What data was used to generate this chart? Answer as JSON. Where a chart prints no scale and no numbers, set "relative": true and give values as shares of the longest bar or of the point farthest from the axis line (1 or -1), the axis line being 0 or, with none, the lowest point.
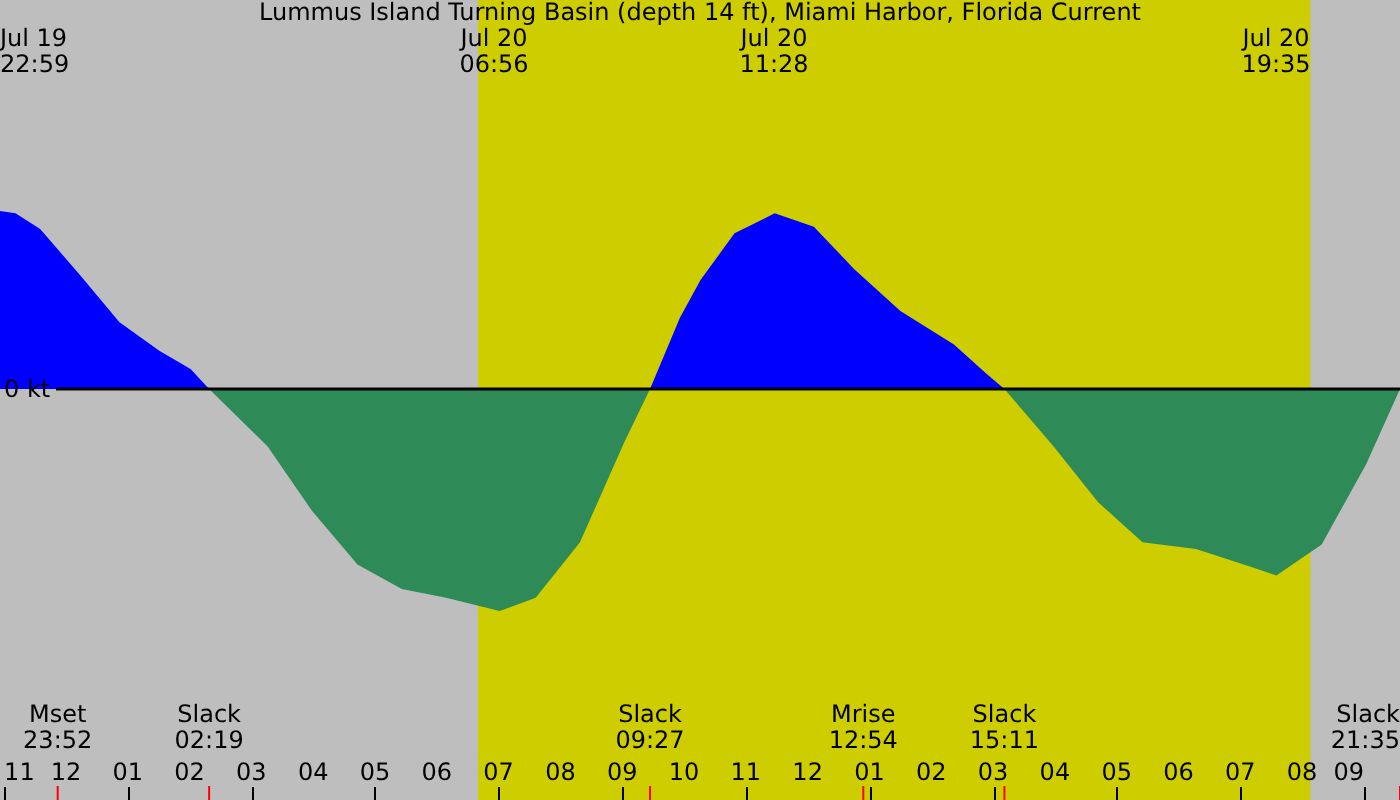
{
  "chart_data": {
    "type": "area",
    "title": "Lummus Island Turning Basin (depth 14 ft), Miami Harbor, Florida Current",
    "relative": true,
    "series": [
      {
        "color": "#0000ff",
        "x": [
          "--07-19T22:56",
          "--07-19T23:11",
          "--07-19T23:35",
          "--07-20T00:14",
          "--07-20T00:52",
          "--07-20T01:31",
          "--07-20T02:01",
          "--07-20T02:19",
          "--07-20T05:30",
          "--07-20T09:27",
          "--07-20T09:56",
          "--07-20T10:16",
          "--07-20T10:49",
          "--07-20T11:28",
          "--07-20T12:06",
          "--07-20T12:45",
          "--07-20T13:30",
          "--07-20T14:22",
          "--07-20T14:53",
          "--07-20T15:11"
        ],
        "values": [
          0.8,
          0.79,
          0.72,
          0.51,
          0.3,
          0.17,
          0.09,
          0,
          null,
          0,
          0.32,
          0.49,
          0.7,
          0.79,
          0.73,
          0.54,
          0.35,
          0.2,
          0.07,
          0
        ]
      },
      {
        "color": "#2e8b57",
        "x": [
          "--07-20T02:19",
          "--07-20T03:16",
          "--07-20T03:59",
          "--07-20T04:43",
          "--07-20T05:26",
          "--07-20T06:09",
          "--07-20T07:01",
          "--07-20T07:36",
          "--07-20T08:19",
          "--07-20T09:02",
          "--07-20T09:27",
          "--07-20T12:30",
          "--07-20T15:11",
          "--07-20T15:59",
          "--07-20T16:42",
          "--07-20T17:25",
          "--07-20T18:17",
          "--07-20T19:10",
          "--07-20T19:35",
          "--07-20T20:19",
          "--07-20T21:02",
          "--07-20T21:35"
        ],
        "values": [
          0,
          -0.26,
          -0.55,
          -0.79,
          -0.9,
          -0.94,
          -1,
          -0.94,
          -0.69,
          -0.24,
          0,
          null,
          0,
          -0.26,
          -0.51,
          -0.69,
          -0.72,
          -0.8,
          -0.84,
          -0.7,
          -0.34,
          0
        ]
      }
    ],
    "xlim": [
      "--07-19T22:56",
      "--07-20T21:35"
    ],
    "xticks": [
      {
        "value": "--07-19T23:00",
        "label": "11"
      },
      {
        "value": "--07-20T00:00",
        "label": "12"
      },
      {
        "value": "--07-20T01:00",
        "label": "01"
      },
      {
        "value": "--07-20T02:00",
        "label": "02"
      },
      {
        "value": "--07-20T03:00",
        "label": "03"
      },
      {
        "value": "--07-20T04:00",
        "label": "04"
      },
      {
        "value": "--07-20T05:00",
        "label": "05"
      },
      {
        "value": "--07-20T06:00",
        "label": "06"
      },
      {
        "value": "--07-20T07:00",
        "label": "07"
      },
      {
        "value": "--07-20T08:00",
        "label": "08"
      },
      {
        "value": "--07-20T09:00",
        "label": "09"
      },
      {
        "value": "--07-20T10:00",
        "label": "10"
      },
      {
        "value": "--07-20T11:00",
        "label": "11"
      },
      {
        "value": "--07-20T12:00",
        "label": "12"
      },
      {
        "value": "--07-20T13:00",
        "label": "01"
      },
      {
        "value": "--07-20T14:00",
        "label": "02"
      },
      {
        "value": "--07-20T15:00",
        "label": "03"
      },
      {
        "value": "--07-20T16:00",
        "label": "04"
      },
      {
        "value": "--07-20T17:00",
        "label": "05"
      },
      {
        "value": "--07-20T18:00",
        "label": "06"
      },
      {
        "value": "--07-20T19:00",
        "label": "07"
      },
      {
        "value": "--07-20T20:00",
        "label": "08"
      },
      {
        "value": "--07-20T21:00",
        "label": "09"
      }
    ],
    "bands": [
      {
        "axis": "x",
        "from": "--07-20T06:40",
        "to": "--07-20T20:08",
        "color": "#cdcd00"
      }
    ],
    "ref_lines": [
      {
        "axis": "y",
        "value": 0,
        "label": "0 kt",
        "color": "#000000"
      },
      {
        "axis": "x",
        "value": "--07-19T23:52",
        "label": "Mset\n23:52",
        "color": "#ff0000"
      },
      {
        "axis": "x",
        "value": "--07-20T02:19",
        "label": "Slack\n02:19",
        "color": "#ff0000"
      },
      {
        "axis": "x",
        "value": "--07-20T09:27",
        "label": "Slack\n09:27",
        "color": "#ff0000"
      },
      {
        "axis": "x",
        "value": "--07-20T12:54",
        "label": "Mrise\n12:54",
        "color": "#ff0000"
      },
      {
        "axis": "x",
        "value": "--07-20T15:11",
        "label": "Slack\n15:11",
        "color": "#ff0000"
      },
      {
        "axis": "x",
        "value": "--07-20T21:35",
        "label": "Slack\n21:35",
        "color": "#ff0000"
      }
    ],
    "annotations": [
      "Jul 19\n22:59",
      "Jul 20\n06:56",
      "Jul 20\n11:28",
      "Jul 20\n19:35"
    ]
  }
}
